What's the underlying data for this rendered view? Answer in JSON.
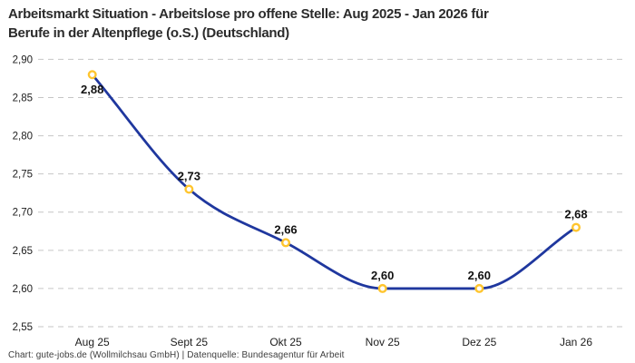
{
  "header": {
    "title_line1": "Arbeitsmarkt Situation - Arbeitslose pro offene Stelle: Aug 2025 - Jan 2026 für",
    "title_line2": "Berufe in der Altenpflege (o.S.) (Deutschland)"
  },
  "footer": {
    "text": "Chart: gute-jobs.de (Wollmilchsau GmbH) | Datenquelle: Bundesagentur für Arbeit"
  },
  "chart_data": {
    "type": "line",
    "title": "Arbeitsmarkt Situation - Arbeitslose pro offene Stelle: Aug 2025 - Jan 2026 für Berufe in der Altenpflege (o.S.) (Deutschland)",
    "categories": [
      "Aug 25",
      "Sept 25",
      "Okt 25",
      "Nov 25",
      "Dez 25",
      "Jan 26"
    ],
    "values": [
      2.88,
      2.73,
      2.66,
      2.6,
      2.6,
      2.68
    ],
    "value_labels": [
      "2,88",
      "2,73",
      "2,66",
      "2,60",
      "2,60",
      "2,68"
    ],
    "label_positions": [
      "below",
      "above",
      "above",
      "above",
      "above",
      "above"
    ],
    "y_ticks": [
      2.9,
      2.85,
      2.8,
      2.75,
      2.7,
      2.65,
      2.6,
      2.55
    ],
    "y_tick_labels": [
      "2,90",
      "2,85",
      "2,80",
      "2,75",
      "2,70",
      "2,65",
      "2,60",
      "2,55"
    ],
    "ylim": [
      2.55,
      2.9
    ],
    "xlabel": "",
    "ylabel": "",
    "grid": "horizontal-dashed",
    "legend": "none",
    "line_style": "smooth-monotone",
    "colors": {
      "line": "#1F379E",
      "marker_ring": "#FFC52E",
      "marker_fill": "#FFFFFF",
      "grid": "#C6C6C6",
      "axis_text": "#1C1C1C",
      "point_label": "#111111"
    }
  }
}
